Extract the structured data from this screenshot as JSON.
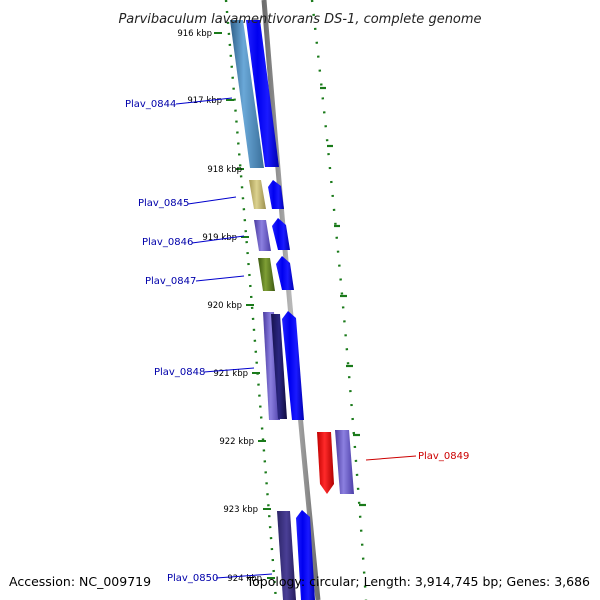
{
  "title": "Parvibaculum lavamentivorans DS-1, complete genome",
  "footer": {
    "accession": "Accession: NC_009719",
    "summary": "Topology: circular; Length: 3,914,745 bp; Genes: 3,686"
  },
  "ticks": [
    "916 kbp",
    "917 kbp",
    "918 kbp",
    "919 kbp",
    "920 kbp",
    "921 kbp",
    "922 kbp",
    "923 kbp",
    "924 kbp"
  ],
  "genes": [
    {
      "name": "Plav_0844",
      "color": "#0000aa"
    },
    {
      "name": "Plav_0845",
      "color": "#0000aa"
    },
    {
      "name": "Plav_0846",
      "color": "#0000aa"
    },
    {
      "name": "Plav_0847",
      "color": "#0000aa"
    },
    {
      "name": "Plav_0848",
      "color": "#0000aa"
    },
    {
      "name": "Plav_0849",
      "color": "#cc0000"
    },
    {
      "name": "Plav_0850",
      "color": "#0000aa"
    }
  ],
  "colors": {
    "forward_cds": "#0000ff",
    "reverse_cds": "#ff0000",
    "backbone": "#888888",
    "gc_dots": "#1a7a1a"
  }
}
